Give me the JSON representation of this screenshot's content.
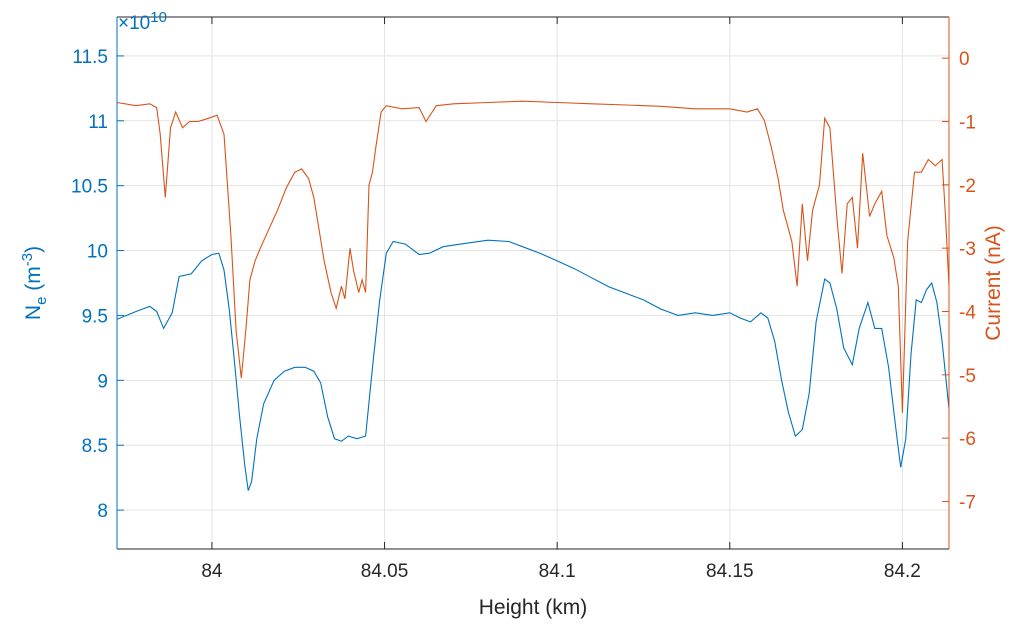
{
  "chart_data": {
    "type": "line",
    "xlabel": "Height (km)",
    "ylabel_left_main": "N",
    "ylabel_left_sub": "e",
    "ylabel_left_unit_open": " (m",
    "ylabel_left_unit_sup": "-3",
    "ylabel_left_unit_close": ")",
    "ylabel_right": "Current (nA)",
    "left_exponent_prefix": "×10",
    "left_exponent_power": "10",
    "xlim": [
      83.9725,
      84.2135
    ],
    "ylim_left": [
      7.7,
      11.8
    ],
    "ylim_right": [
      -7.75,
      0.65
    ],
    "xticks": [
      84,
      84.05,
      84.1,
      84.15,
      84.2
    ],
    "xtick_labels": [
      "84",
      "84.05",
      "84.1",
      "84.15",
      "84.2"
    ],
    "yticks_left": [
      8,
      8.5,
      9,
      9.5,
      10,
      10.5,
      11,
      11.5
    ],
    "ytick_left_labels": [
      "8",
      "8.5",
      "9",
      "9.5",
      "10",
      "10.5",
      "11",
      "11.5"
    ],
    "yticks_right": [
      -7,
      -6,
      -5,
      -4,
      -3,
      -2,
      -1,
      0
    ],
    "ytick_right_labels": [
      "-7",
      "-6",
      "-5",
      "-4",
      "-3",
      "-2",
      "-1",
      "0"
    ],
    "grid": true,
    "colors": {
      "left_series": "#0072bd",
      "right_series": "#d95319",
      "grid": "#e3e3e3",
      "axis": "#262626"
    },
    "series": [
      {
        "axis": "left",
        "x": [
          83.9725,
          83.978,
          83.982,
          83.984,
          83.986,
          83.9885,
          83.9905,
          83.994,
          83.997,
          84.0,
          84.002,
          84.0035,
          84.005,
          84.0065,
          84.008,
          84.0095,
          84.0105,
          84.0115,
          84.013,
          84.015,
          84.018,
          84.021,
          84.024,
          84.027,
          84.0295,
          84.0315,
          84.0335,
          84.0355,
          84.0375,
          84.0395,
          84.042,
          84.0445,
          84.0465,
          84.0485,
          84.0505,
          84.0525,
          84.056,
          84.06,
          84.063,
          84.067,
          84.072,
          84.08,
          84.086,
          84.09,
          84.095,
          84.1,
          84.105,
          84.11,
          84.115,
          84.12,
          84.125,
          84.13,
          84.135,
          84.14,
          84.145,
          84.15,
          84.153,
          84.156,
          84.159,
          84.161,
          84.163,
          84.165,
          84.167,
          84.169,
          84.171,
          84.173,
          84.175,
          84.1775,
          84.179,
          84.181,
          84.183,
          84.1855,
          84.1875,
          84.19,
          84.192,
          84.194,
          84.196,
          84.198,
          84.1995,
          84.201,
          84.2025,
          84.204,
          84.2055,
          84.207,
          84.2085,
          84.21,
          84.2115,
          84.2135
        ],
        "values": [
          9.47,
          9.53,
          9.57,
          9.53,
          9.4,
          9.52,
          9.8,
          9.82,
          9.92,
          9.97,
          9.98,
          9.85,
          9.55,
          9.15,
          8.72,
          8.35,
          8.15,
          8.22,
          8.55,
          8.82,
          9.0,
          9.07,
          9.1,
          9.1,
          9.07,
          8.98,
          8.72,
          8.55,
          8.53,
          8.57,
          8.55,
          8.57,
          9.1,
          9.6,
          9.98,
          10.07,
          10.05,
          9.97,
          9.98,
          10.03,
          10.05,
          10.08,
          10.07,
          10.03,
          9.98,
          9.92,
          9.86,
          9.79,
          9.72,
          9.67,
          9.62,
          9.55,
          9.5,
          9.52,
          9.5,
          9.52,
          9.48,
          9.45,
          9.52,
          9.48,
          9.3,
          9.0,
          8.75,
          8.57,
          8.62,
          8.9,
          9.45,
          9.78,
          9.75,
          9.55,
          9.25,
          9.12,
          9.4,
          9.6,
          9.4,
          9.4,
          9.1,
          8.65,
          8.33,
          8.55,
          9.2,
          9.62,
          9.6,
          9.7,
          9.75,
          9.6,
          9.3,
          8.78
        ]
      },
      {
        "axis": "right",
        "x": [
          83.9725,
          83.978,
          83.982,
          83.984,
          83.985,
          83.9865,
          83.988,
          83.9895,
          83.9915,
          83.9935,
          83.996,
          83.999,
          84.0015,
          84.0035,
          84.0055,
          84.007,
          84.0085,
          84.0098,
          84.011,
          84.0125,
          84.014,
          84.0165,
          84.019,
          84.0215,
          84.024,
          84.026,
          84.028,
          84.0295,
          84.031,
          84.0325,
          84.0345,
          84.036,
          84.0375,
          84.0385,
          84.04,
          84.041,
          84.0425,
          84.0435,
          84.0445,
          84.0455,
          84.0465,
          84.0475,
          84.049,
          84.0505,
          84.055,
          84.06,
          84.062,
          84.065,
          84.07,
          84.08,
          84.09,
          84.1,
          84.11,
          84.12,
          84.13,
          84.14,
          84.15,
          84.155,
          84.158,
          84.16,
          84.162,
          84.164,
          84.1655,
          84.167,
          84.168,
          84.1695,
          84.171,
          84.1725,
          84.174,
          84.176,
          84.1775,
          84.179,
          84.181,
          84.1825,
          84.184,
          84.1855,
          84.187,
          84.1885,
          84.1905,
          84.192,
          84.194,
          84.1955,
          84.1975,
          84.1988,
          84.2,
          84.2015,
          84.2035,
          84.2055,
          84.2075,
          84.2095,
          84.2115,
          84.2125,
          84.2135
        ],
        "values": [
          -0.7,
          -0.75,
          -0.72,
          -0.78,
          -1.2,
          -2.2,
          -1.1,
          -0.85,
          -1.1,
          -1.0,
          -1.0,
          -0.95,
          -0.9,
          -1.2,
          -2.8,
          -4.3,
          -5.05,
          -4.3,
          -3.5,
          -3.2,
          -3.0,
          -2.7,
          -2.4,
          -2.05,
          -1.8,
          -1.75,
          -1.9,
          -2.2,
          -2.7,
          -3.2,
          -3.7,
          -3.95,
          -3.6,
          -3.8,
          -3.0,
          -3.35,
          -3.7,
          -3.5,
          -3.7,
          -2.0,
          -1.8,
          -1.4,
          -0.85,
          -0.75,
          -0.8,
          -0.78,
          -1.0,
          -0.75,
          -0.72,
          -0.7,
          -0.68,
          -0.7,
          -0.72,
          -0.74,
          -0.76,
          -0.8,
          -0.8,
          -0.85,
          -0.8,
          -0.98,
          -1.4,
          -1.9,
          -2.4,
          -2.7,
          -2.9,
          -3.6,
          -2.3,
          -3.2,
          -2.4,
          -2.0,
          -0.95,
          -1.1,
          -2.5,
          -3.4,
          -2.3,
          -2.2,
          -3.0,
          -1.5,
          -2.5,
          -2.3,
          -2.1,
          -2.8,
          -3.15,
          -3.6,
          -5.6,
          -2.9,
          -1.8,
          -1.8,
          -1.6,
          -1.7,
          -1.6,
          -2.5,
          -3.6
        ]
      }
    ]
  }
}
